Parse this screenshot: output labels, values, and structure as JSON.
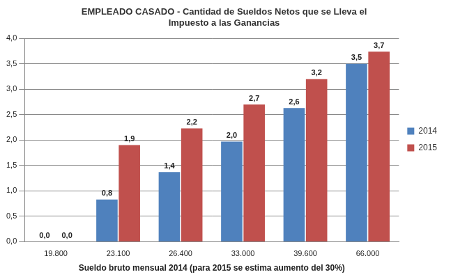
{
  "chart_data": {
    "type": "bar",
    "title": [
      "EMPLEADO CASADO - Cantidad de Sueldos Netos que se Lleva el",
      "Impuesto a las Ganancias"
    ],
    "x_label": "Sueldo bruto mensual 2014 (para 2015 se estima aumento del 30%)",
    "categories": [
      "19.800",
      "23.100",
      "26.400",
      "33.000",
      "39.600",
      "66.000"
    ],
    "series": [
      {
        "name": "2014",
        "color": "#4F81BD",
        "values": [
          0,
          0.83,
          1.37,
          1.97,
          2.63,
          3.5
        ],
        "value_labels": [
          "0,0",
          "0,8",
          "1,4",
          "2,0",
          "2,6",
          "3,5"
        ]
      },
      {
        "name": "2015",
        "color": "#C0504D",
        "values": [
          0,
          1.9,
          2.23,
          2.7,
          3.2,
          3.74
        ],
        "value_labels": [
          "0,0",
          "1,9",
          "2,2",
          "2,7",
          "3,2",
          "3,7"
        ]
      }
    ],
    "ylim": [
      0,
      4
    ],
    "yticks": [
      {
        "value": 0,
        "label": "0,0"
      },
      {
        "value": 0.5,
        "label": "0,5"
      },
      {
        "value": 1,
        "label": "1,0"
      },
      {
        "value": 1.5,
        "label": "1,5"
      },
      {
        "value": 2,
        "label": "2,0"
      },
      {
        "value": 2.5,
        "label": "2,5"
      },
      {
        "value": 3,
        "label": "3,0"
      },
      {
        "value": 3.5,
        "label": "3,5"
      },
      {
        "value": 4,
        "label": "4,0"
      }
    ],
    "grid": true,
    "legend": "right",
    "data_labels": true
  }
}
